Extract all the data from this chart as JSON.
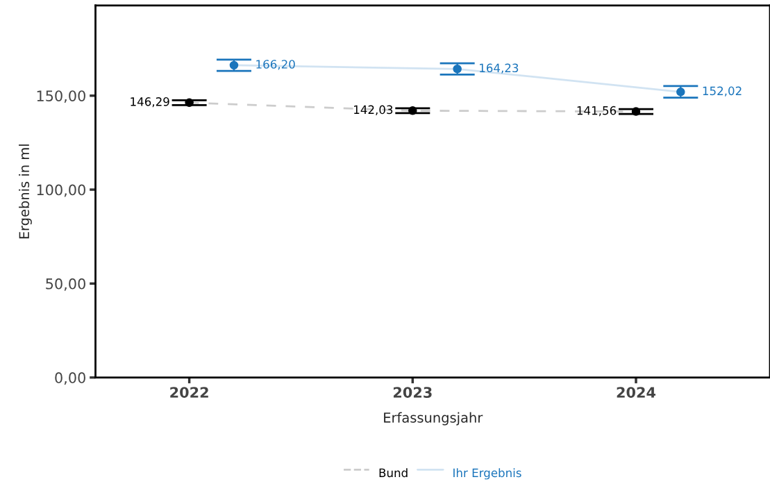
{
  "chart_data": {
    "type": "line",
    "xlabel": "Erfassungsjahr",
    "ylabel": "Ergebnis in ml",
    "categories": [
      "2022",
      "2023",
      "2024"
    ],
    "ylim": [
      0,
      198
    ],
    "yticks": [
      {
        "value": 0,
        "label": "0,00"
      },
      {
        "value": 50,
        "label": "50,00"
      },
      {
        "value": 100,
        "label": "100,00"
      },
      {
        "value": 150,
        "label": "150,00"
      }
    ],
    "series": [
      {
        "name": "Bund",
        "color": "#000000",
        "values": [
          146.29,
          142.03,
          141.56
        ],
        "errors": [
          1.3,
          1.3,
          1.3
        ],
        "line_style": "dashed",
        "value_labels": [
          "146,29",
          "142,03",
          "141,56"
        ]
      },
      {
        "name": "Ihr Ergebnis",
        "color": "#1a75bc",
        "values": [
          166.2,
          164.23,
          152.02
        ],
        "errors": [
          3,
          3,
          3.1
        ],
        "line_style": "solid",
        "value_labels": [
          "166,20",
          "164,23",
          "152,02"
        ]
      }
    ],
    "marker": "circle",
    "grid": false,
    "legend": "bottom"
  }
}
